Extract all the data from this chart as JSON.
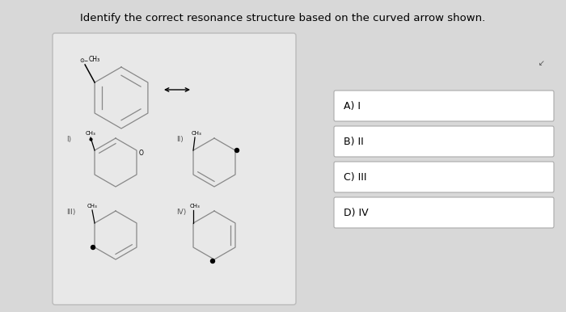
{
  "title": "Identify the correct resonance structure based on the curved arrow shown.",
  "title_fontsize": 9.5,
  "fig_bg": "#d8d8d8",
  "box_facecolor": "#e8e8e8",
  "box_edgecolor": "#bbbbbb",
  "answer_labels": [
    "A) I",
    "B) II",
    "C) III",
    "D) IV"
  ],
  "answer_box_color": "#ffffff",
  "answer_edge_color": "#aaaaaa",
  "ring_lw": 0.9,
  "ring_color": "#888888"
}
